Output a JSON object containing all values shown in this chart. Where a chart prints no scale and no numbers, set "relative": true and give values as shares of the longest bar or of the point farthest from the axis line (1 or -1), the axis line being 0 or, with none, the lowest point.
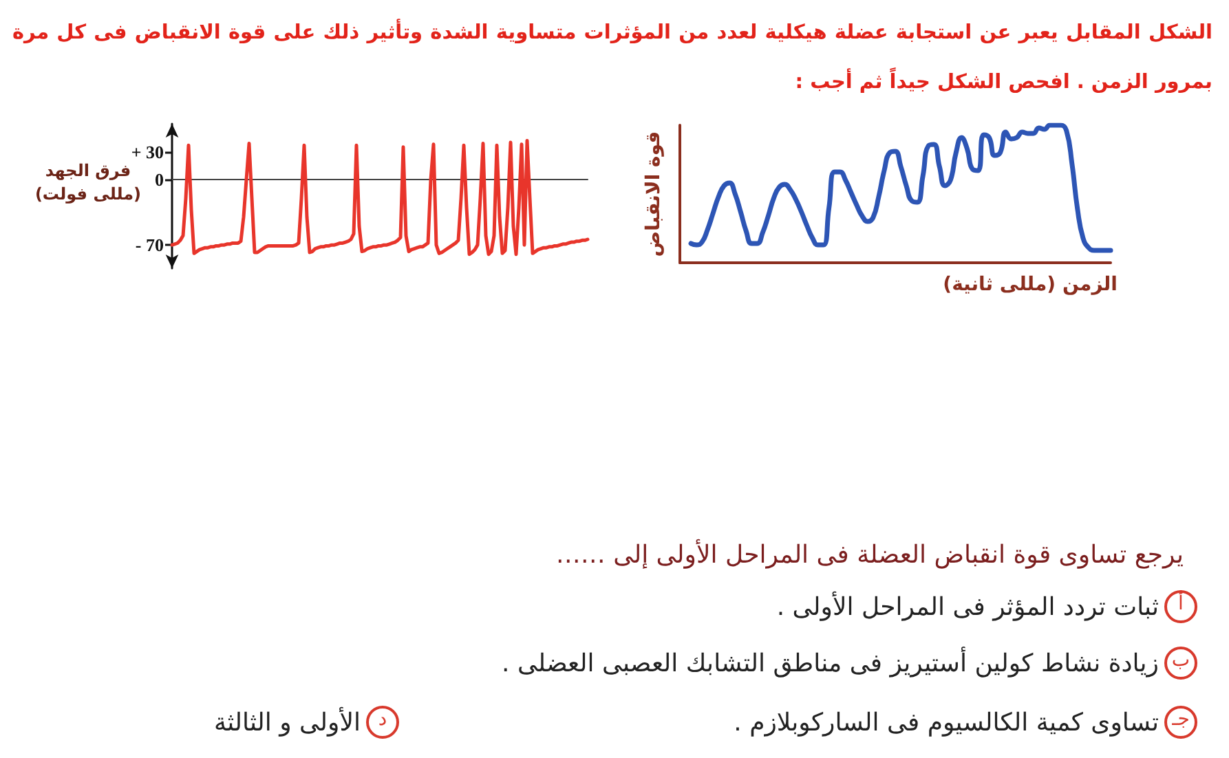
{
  "chart_data": [
    {
      "type": "other",
      "title": "الشكل المقابل يعبر عن استجابة عضلة هيكلية لعدد من المؤثرات متساوية الشدة وتأثير ذلك على قوة الانقباض فى كل مرة بمرور الزمن . افحص الشكل جيداً ثم أجب :"
    },
    {
      "type": "line",
      "relative": true,
      "ylabel": "قوة الانقباض",
      "xlabel": "الزمن (مللى ثانية)",
      "tick_labels": false,
      "marker": "none",
      "line_style": "solid",
      "color": "#2d55b5",
      "categories": [
        null,
        null,
        null,
        null,
        null,
        null,
        null,
        null,
        null,
        null,
        null,
        null,
        null,
        null,
        null,
        null,
        null,
        null,
        null,
        null,
        null,
        null,
        null,
        null,
        null,
        null,
        null,
        null,
        null,
        null,
        null,
        null,
        null,
        null,
        null,
        null,
        null,
        null,
        null,
        null,
        null,
        null,
        null,
        null,
        null,
        null,
        null,
        null,
        null,
        null,
        null,
        null,
        null,
        null,
        null,
        null,
        null,
        null,
        null,
        null,
        null,
        null,
        null,
        null,
        null,
        null,
        null,
        null,
        null,
        null,
        null,
        null,
        null,
        null,
        null,
        null,
        null,
        null,
        null
      ],
      "values": [
        null,
        null,
        0.14,
        0.13,
        0.15,
        0.24,
        0.36,
        0.48,
        0.56,
        0.58,
        0.5,
        0.37,
        0.23,
        0.14,
        0.14,
        0.22,
        0.34,
        0.47,
        0.55,
        0.57,
        0.53,
        0.46,
        0.37,
        0.27,
        0.18,
        0.13,
        0.13,
        0.4,
        0.66,
        0.66,
        0.6,
        0.51,
        0.42,
        0.34,
        0.3,
        0.33,
        0.48,
        0.67,
        0.8,
        0.81,
        0.7,
        0.56,
        0.45,
        0.44,
        0.63,
        0.85,
        0.86,
        0.7,
        0.56,
        0.6,
        0.8,
        0.91,
        0.83,
        0.68,
        0.67,
        0.93,
        0.91,
        0.78,
        0.8,
        0.95,
        0.9,
        0.91,
        0.95,
        0.94,
        0.94,
        0.98,
        0.97,
        1,
        1,
        1,
        0.96,
        0.72,
        0.39,
        0.18,
        0.11,
        0.09,
        0.09,
        0.09,
        0.09
      ]
    },
    {
      "type": "line",
      "ylabel": "فرق الجهد (مللى فولت)",
      "ylim": [
        -95,
        60
      ],
      "yticks": [
        {
          "value": 30,
          "label": "+ 30"
        },
        0,
        {
          "value": -70,
          "label": "- 70"
        }
      ],
      "tick_labels": "y",
      "marker": "none",
      "line_style": "solid",
      "color": "#e8352b",
      "categories": [
        null,
        null,
        null,
        null,
        null,
        null,
        null,
        null,
        null,
        null,
        null,
        null,
        null,
        null,
        null,
        null,
        null,
        null,
        null,
        null,
        null,
        null,
        null,
        null,
        null,
        null,
        null,
        null,
        null,
        null,
        null,
        null,
        null,
        null,
        null,
        null,
        null,
        null,
        null,
        null,
        null,
        null,
        null,
        null,
        null,
        null,
        null,
        null,
        null,
        null,
        null,
        null,
        null,
        null,
        null,
        null,
        null,
        null,
        null,
        null,
        null,
        null,
        null,
        null,
        null,
        null,
        null,
        null,
        null,
        null,
        null,
        null,
        null,
        null,
        null,
        null,
        null,
        null,
        null,
        null,
        null,
        null,
        null,
        null,
        null,
        null,
        null,
        null,
        null,
        null,
        null,
        null,
        null,
        null,
        null,
        null,
        null,
        null,
        null,
        null,
        null,
        null,
        null,
        null,
        null,
        null,
        null,
        null,
        null,
        null,
        null,
        null,
        null,
        null,
        null,
        null,
        null,
        null,
        null,
        null,
        null,
        null,
        null,
        null,
        null,
        null,
        null,
        null,
        null,
        null,
        null,
        null,
        null,
        null,
        null,
        null,
        null,
        null,
        null,
        null,
        null,
        null,
        null,
        null,
        null,
        null,
        null,
        null,
        null,
        null,
        null,
        null
      ],
      "values": [
        -70,
        -69,
        -68,
        -65,
        -60,
        -20,
        37,
        -32,
        -79,
        -77,
        -75,
        -74,
        -73,
        -73,
        -72,
        -72,
        -71,
        -71,
        -70,
        -70,
        -69,
        -69,
        -68,
        -68,
        -68,
        -66,
        -40,
        0,
        39,
        -20,
        -78,
        -78,
        -76,
        -74,
        -72,
        -71,
        -71,
        -71,
        -71,
        -71,
        -71,
        -71,
        -71,
        -71,
        -71,
        -70,
        -68,
        -20,
        37,
        -40,
        -78,
        -77,
        -74,
        -73,
        -72,
        -72,
        -71,
        -71,
        -70,
        -70,
        -69,
        -68,
        -68,
        -67,
        -66,
        -64,
        -58,
        37,
        -50,
        -77,
        -76,
        -74,
        -73,
        -72,
        -72,
        -71,
        -71,
        -70,
        -70,
        -69,
        -68,
        -67,
        -65,
        -62,
        35,
        -60,
        -77,
        -75,
        -74,
        -73,
        -72,
        -72,
        -70,
        -68,
        0,
        38,
        -70,
        -79,
        -78,
        -76,
        -74,
        -72,
        -70,
        -68,
        -65,
        -20,
        37,
        -30,
        -80,
        -78,
        -75,
        -70,
        -20,
        39,
        -60,
        -80,
        -77,
        -60,
        37,
        -40,
        -79,
        -76,
        -30,
        40,
        -50,
        -80,
        -30,
        38,
        -70,
        42,
        -20,
        -79,
        -77,
        -75,
        -74,
        -73,
        -73,
        -72,
        -72,
        -71,
        -71,
        -70,
        -69,
        -69,
        -68,
        -67,
        -67,
        -66,
        -66,
        -65,
        -65,
        -64
      ]
    },
    {
      "type": "other",
      "title": "يرجع تساوى قوة انقباض العضلة فى المراحل الأولى إلى ……",
      "annotations": [
        "أ",
        "ثبات تردد المؤثر فى المراحل الأولى .",
        "ب",
        "زيادة نشاط كولين أستيريز فى مناطق التشابك العصبى العضلى .",
        "جـ",
        "تساوى كمية الكالسيوم فى الساركوبلازم .",
        "د",
        "الأولى و الثالثة"
      ]
    }
  ]
}
